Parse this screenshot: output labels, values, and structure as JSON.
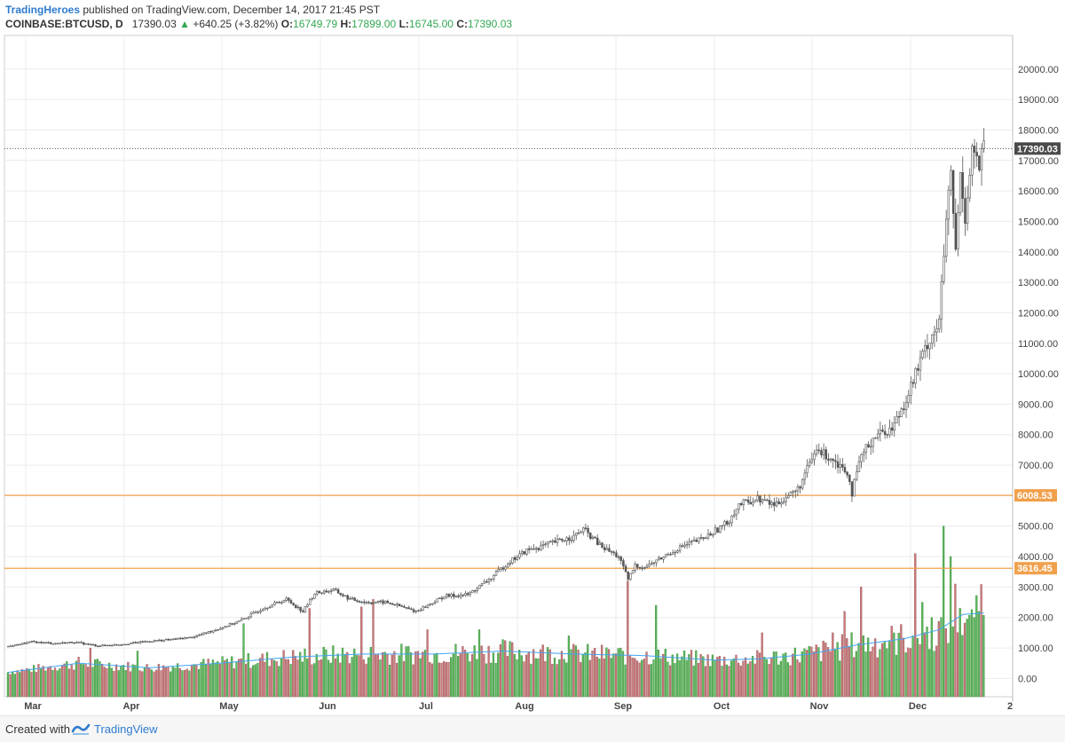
{
  "header": {
    "publisher": "TradingHeroes",
    "published_text": "published on TradingView.com, December 14, 2017 21:45 PST",
    "symbol": "COINBASE:BTCUSD, D",
    "last": "17390.03",
    "change": "+640.25 (+3.82%)",
    "o_label": "O:",
    "o_value": "16749.79",
    "h_label": "H:",
    "h_value": "17899.00",
    "l_label": "L:",
    "l_value": "16745.00",
    "c_label": "C:",
    "c_value": "17390.03"
  },
  "footer": {
    "created_with": "Created with",
    "brand": "TradingView"
  },
  "colors": {
    "candle": "#555555",
    "vol_up": "#5cb85c",
    "vol_down": "#c9797b",
    "ma_line": "#42a5f5",
    "level_line": "#f0a04b",
    "price_tag": "#4a4a4a"
  },
  "chart_data": {
    "type": "candlestick",
    "y_range": [
      -600,
      21100
    ],
    "y_ticks": [
      "20000.00",
      "19000.00",
      "18000.00",
      "17000.00",
      "16000.00",
      "15000.00",
      "14000.00",
      "13000.00",
      "12000.00",
      "11000.00",
      "10000.00",
      "9000.00",
      "8000.00",
      "7000.00",
      "6000.00",
      "5000.00",
      "4000.00",
      "3000.00",
      "2000.00",
      "1000.00",
      "0.00"
    ],
    "x_labels": [
      "Mar",
      "Apr",
      "May",
      "Jun",
      "Jul",
      "Aug",
      "Sep",
      "Oct",
      "Nov",
      "Dec",
      "2"
    ],
    "levels": [
      {
        "value": 6008.53,
        "label": "6008.53"
      },
      {
        "value": 3616.45,
        "label": "3616.45"
      }
    ],
    "last_price": {
      "value": 17390.03,
      "label": "17390.03"
    },
    "price_anchors": [
      [
        0,
        1050
      ],
      [
        10,
        1200
      ],
      [
        20,
        1150
      ],
      [
        28,
        1190
      ],
      [
        38,
        1070
      ],
      [
        48,
        1120
      ],
      [
        58,
        1210
      ],
      [
        68,
        1270
      ],
      [
        78,
        1350
      ],
      [
        88,
        1600
      ],
      [
        98,
        1880
      ],
      [
        108,
        2300
      ],
      [
        118,
        2600
      ],
      [
        125,
        2200
      ],
      [
        130,
        2800
      ],
      [
        138,
        2900
      ],
      [
        145,
        2600
      ],
      [
        152,
        2500
      ],
      [
        160,
        2500
      ],
      [
        165,
        2400
      ],
      [
        173,
        2200
      ],
      [
        178,
        2400
      ],
      [
        185,
        2700
      ],
      [
        195,
        2750
      ],
      [
        205,
        3300
      ],
      [
        212,
        3800
      ],
      [
        220,
        4200
      ],
      [
        227,
        4350
      ],
      [
        233,
        4500
      ],
      [
        240,
        4650
      ],
      [
        244,
        4900
      ],
      [
        252,
        4300
      ],
      [
        259,
        4000
      ],
      [
        263,
        3250
      ],
      [
        266,
        3700
      ],
      [
        270,
        3650
      ],
      [
        276,
        3900
      ],
      [
        285,
        4300
      ],
      [
        295,
        4600
      ],
      [
        305,
        5100
      ],
      [
        310,
        5700
      ],
      [
        318,
        5900
      ],
      [
        325,
        5700
      ],
      [
        335,
        6200
      ],
      [
        343,
        7500
      ],
      [
        350,
        7200
      ],
      [
        356,
        6800
      ],
      [
        358,
        6100
      ],
      [
        362,
        7300
      ],
      [
        368,
        8000
      ],
      [
        375,
        8200
      ],
      [
        380,
        9000
      ],
      [
        385,
        10000
      ],
      [
        390,
        11000
      ],
      [
        395,
        11700
      ],
      [
        398,
        15000
      ],
      [
        400,
        16500
      ],
      [
        402,
        14000
      ],
      [
        404,
        16500
      ],
      [
        406,
        15200
      ],
      [
        409,
        17400
      ],
      [
        412,
        16800
      ],
      [
        414,
        17390
      ]
    ],
    "volume_anchors": [
      [
        0,
        200
      ],
      [
        30,
        500
      ],
      [
        60,
        350
      ],
      [
        90,
        500
      ],
      [
        120,
        700
      ],
      [
        150,
        800
      ],
      [
        180,
        800
      ],
      [
        210,
        900
      ],
      [
        240,
        800
      ],
      [
        270,
        750
      ],
      [
        300,
        600
      ],
      [
        320,
        650
      ],
      [
        340,
        800
      ],
      [
        360,
        1100
      ],
      [
        380,
        1300
      ],
      [
        395,
        1600
      ],
      [
        405,
        2100
      ],
      [
        414,
        2150
      ]
    ],
    "volume_spikes": [
      [
        35,
        1000
      ],
      [
        55,
        900
      ],
      [
        100,
        1800
      ],
      [
        128,
        2300
      ],
      [
        150,
        2350
      ],
      [
        155,
        2600
      ],
      [
        178,
        1600
      ],
      [
        200,
        1600
      ],
      [
        238,
        1400
      ],
      [
        263,
        3200
      ],
      [
        275,
        2400
      ],
      [
        320,
        1500
      ],
      [
        350,
        1500
      ],
      [
        355,
        2200
      ],
      [
        362,
        3000
      ],
      [
        385,
        4100
      ],
      [
        388,
        2500
      ],
      [
        397,
        5000
      ],
      [
        400,
        4000
      ],
      [
        402,
        3100
      ],
      [
        404,
        2300
      ],
      [
        407,
        1950
      ],
      [
        410,
        2000
      ],
      [
        412,
        2200
      ]
    ]
  }
}
